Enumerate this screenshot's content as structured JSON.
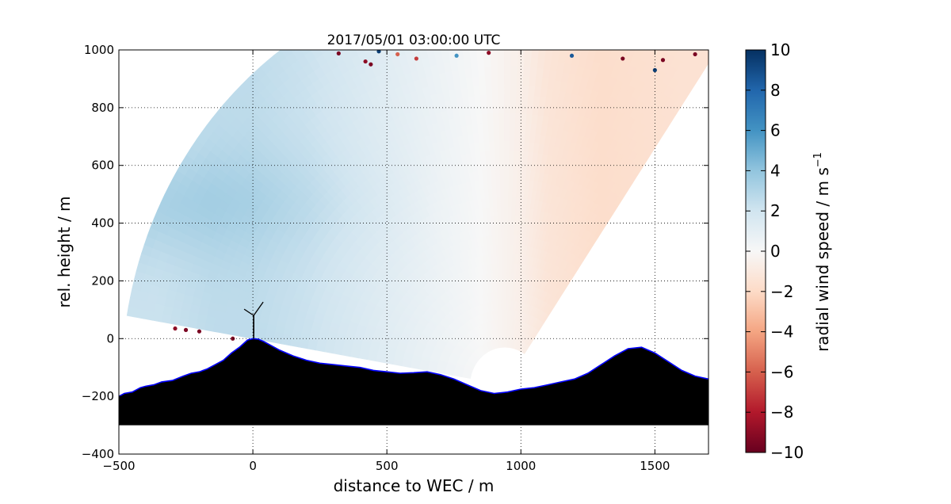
{
  "chart_data": {
    "type": "heatmap",
    "title": "2017/05/01 03:00:00 UTC",
    "xlabel": "distance to WEC / m",
    "ylabel": "rel. height / m",
    "xlim": [
      -500,
      1700
    ],
    "ylim": [
      -400,
      1000
    ],
    "x_ticks": [
      "−500",
      "0",
      "500",
      "1000",
      "1500"
    ],
    "y_ticks": [
      "−400",
      "−200",
      "0",
      "200",
      "400",
      "600",
      "800",
      "1000"
    ],
    "grid": true,
    "colorbar": {
      "label": "radial wind speed / m s",
      "label_superscript": "−1",
      "range": [
        -10,
        10
      ],
      "ticks": [
        "10",
        "8",
        "6",
        "4",
        "2",
        "0",
        "−2",
        "−4",
        "−6",
        "−8",
        "−10"
      ],
      "colormap": "RdBu",
      "colors": [
        "#67001f",
        "#b2182b",
        "#d6604d",
        "#f4a582",
        "#fddbc7",
        "#f7f7f7",
        "#d1e5f0",
        "#92c5de",
        "#4393c3",
        "#2166ac",
        "#053061"
      ]
    },
    "scan_origin": {
      "x": 940,
      "y": -160
    },
    "scan_field": {
      "sample_x": [
        -350,
        -150,
        0,
        200,
        500,
        800,
        1000,
        1100,
        1300,
        1600
      ],
      "radial_wind_speed": [
        2.2,
        2.6,
        2.6,
        2.2,
        1.2,
        0.2,
        -0.6,
        -1.3,
        -1.8,
        -1.5
      ],
      "note_band": "stronger positive values (~2.5 m/s) near 450 m height on the left side"
    },
    "terrain": {
      "x": [
        -500,
        -480,
        -450,
        -420,
        -400,
        -370,
        -340,
        -300,
        -260,
        -230,
        -200,
        -170,
        -140,
        -110,
        -80,
        -50,
        -20,
        0,
        20,
        40,
        60,
        100,
        150,
        200,
        250,
        300,
        350,
        400,
        450,
        500,
        550,
        600,
        650,
        700,
        750,
        800,
        850,
        900,
        950,
        1000,
        1050,
        1100,
        1150,
        1200,
        1250,
        1300,
        1350,
        1400,
        1450,
        1500,
        1550,
        1600,
        1650,
        1700
      ],
      "height": [
        -200,
        -190,
        -185,
        -170,
        -165,
        -160,
        -150,
        -145,
        -130,
        -120,
        -115,
        -105,
        -90,
        -75,
        -50,
        -30,
        -5,
        0,
        -2,
        -10,
        -20,
        -40,
        -60,
        -75,
        -85,
        -90,
        -95,
        -100,
        -110,
        -115,
        -120,
        -118,
        -115,
        -125,
        -140,
        -160,
        -180,
        -190,
        -185,
        -175,
        -170,
        -160,
        -150,
        -140,
        -120,
        -90,
        -60,
        -35,
        -30,
        -50,
        -80,
        -110,
        -130,
        -140
      ],
      "base": -300,
      "outline_color": "#0000ff"
    },
    "turbine": {
      "x": 0,
      "hub_height": 80
    },
    "outlier_points": [
      {
        "x": 320,
        "y": 988,
        "v": -9.5
      },
      {
        "x": 420,
        "y": 960,
        "v": -9
      },
      {
        "x": 440,
        "y": 950,
        "v": -9.5
      },
      {
        "x": 470,
        "y": 995,
        "v": 9.5
      },
      {
        "x": 540,
        "y": 985,
        "v": -6
      },
      {
        "x": 610,
        "y": 970,
        "v": -7
      },
      {
        "x": 760,
        "y": 980,
        "v": 6
      },
      {
        "x": 1190,
        "y": 980,
        "v": 8.5
      },
      {
        "x": 1380,
        "y": 970,
        "v": -9.5
      },
      {
        "x": 1500,
        "y": 930,
        "v": 9.5
      },
      {
        "x": 1530,
        "y": 965,
        "v": -9.5
      },
      {
        "x": 1650,
        "y": 985,
        "v": -9.5
      },
      {
        "x": -290,
        "y": 35,
        "v": -9
      },
      {
        "x": -250,
        "y": 30,
        "v": -9.5
      },
      {
        "x": -200,
        "y": 25,
        "v": -9.5
      },
      {
        "x": -75,
        "y": 0,
        "v": -9.5
      },
      {
        "x": 880,
        "y": 990,
        "v": -9
      }
    ]
  }
}
